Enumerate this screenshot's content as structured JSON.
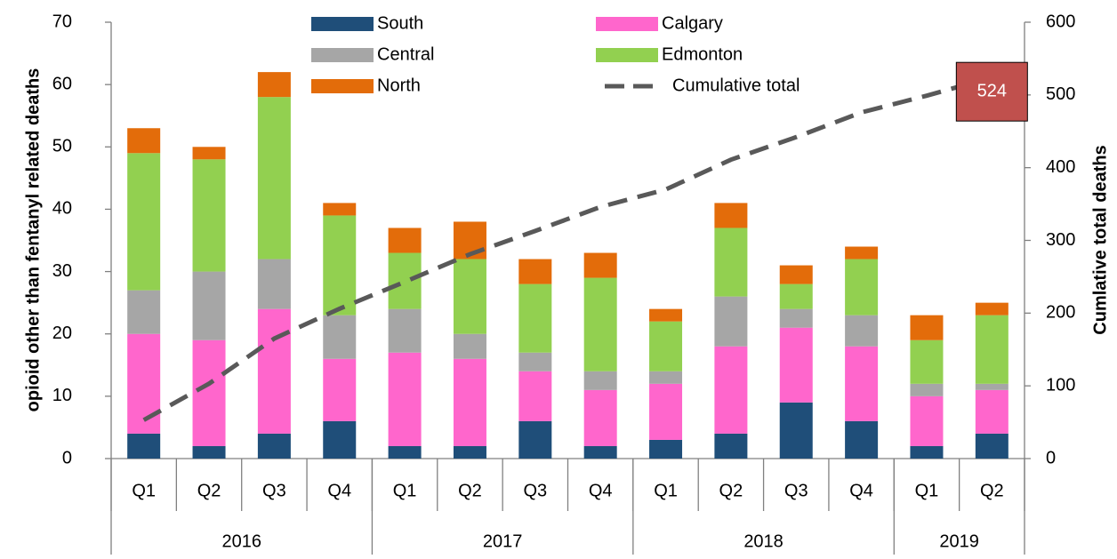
{
  "chart_data": {
    "type": "bar",
    "stacked": true,
    "y_label": "opioid other than fentanyl  related deaths",
    "y2_label": "Cumlative total deaths",
    "categories": [
      "Q1",
      "Q2",
      "Q3",
      "Q4",
      "Q1",
      "Q2",
      "Q3",
      "Q4",
      "Q1",
      "Q2",
      "Q3",
      "Q4",
      "Q1",
      "Q2"
    ],
    "year_groups": [
      {
        "label": "2016",
        "count": 4
      },
      {
        "label": "2017",
        "count": 4
      },
      {
        "label": "2018",
        "count": 4
      },
      {
        "label": "2019",
        "count": 2
      }
    ],
    "series": [
      {
        "name": "South",
        "color": "#1f4e79",
        "values": [
          4,
          2,
          4,
          6,
          2,
          2,
          6,
          2,
          3,
          4,
          9,
          6,
          2,
          4
        ]
      },
      {
        "name": "Calgary",
        "color": "#ff66cc",
        "values": [
          16,
          17,
          20,
          10,
          15,
          14,
          8,
          9,
          9,
          14,
          12,
          12,
          8,
          7
        ]
      },
      {
        "name": "Central",
        "color": "#a6a6a6",
        "values": [
          7,
          11,
          8,
          7,
          7,
          4,
          3,
          3,
          2,
          8,
          3,
          5,
          2,
          1
        ]
      },
      {
        "name": "Edmonton",
        "color": "#92d050",
        "values": [
          22,
          18,
          26,
          16,
          9,
          12,
          11,
          15,
          8,
          11,
          4,
          9,
          7,
          11
        ]
      },
      {
        "name": "North",
        "color": "#e36c0a",
        "values": [
          4,
          2,
          4,
          2,
          4,
          6,
          4,
          4,
          2,
          4,
          3,
          2,
          4,
          2
        ]
      },
      {
        "name": "Cumulative total",
        "type": "line",
        "axis": "y2",
        "color": "#595959",
        "values": [
          53,
          103,
          165,
          206,
          243,
          281,
          313,
          346,
          370,
          411,
          442,
          476,
          499,
          524
        ],
        "value_labels": [
          null,
          null,
          null,
          null,
          null,
          null,
          null,
          null,
          null,
          null,
          null,
          null,
          null,
          "524"
        ]
      }
    ],
    "ylim": [
      0,
      70
    ],
    "yticks": [
      0,
      10,
      20,
      30,
      40,
      50,
      60,
      70
    ],
    "y2lim": [
      0,
      600
    ],
    "y2ticks": [
      0,
      100,
      200,
      300,
      400,
      500,
      600
    ],
    "label_box_color": "#c0504d"
  }
}
